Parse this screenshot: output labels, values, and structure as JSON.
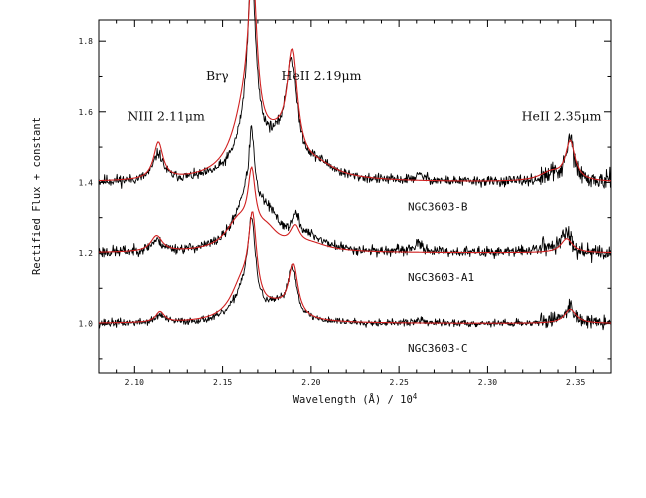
{
  "chart_data": {
    "type": "line",
    "title": "",
    "xlabel": "Wavelength (Å) / 10",
    "xlabel_sup": "4",
    "ylabel": "Rectified Flux + constant",
    "xlim": [
      2.08,
      2.37
    ],
    "ylim": [
      0.86,
      1.86
    ],
    "x_ticks": [
      2.1,
      2.15,
      2.2,
      2.25,
      2.3,
      2.35
    ],
    "x_tick_labels": [
      "2.10",
      "2.15",
      "2.20",
      "2.25",
      "2.30",
      "2.35"
    ],
    "y_ticks": [
      1.0,
      1.2,
      1.4,
      1.6,
      1.8
    ],
    "y_tick_labels": [
      "1.0",
      "1.2",
      "1.4",
      "1.6",
      "1.8"
    ],
    "annotations": [
      {
        "id": "niii",
        "text": "NIII 2.11μm",
        "x": 2.118,
        "y": 1.575
      },
      {
        "id": "brg",
        "text": "Brγ",
        "x": 2.147,
        "y": 1.69
      },
      {
        "id": "heii219",
        "text": "HeII 2.19μm",
        "x": 2.206,
        "y": 1.69
      },
      {
        "id": "heii235",
        "text": "HeII 2.35μm",
        "x": 2.342,
        "y": 1.575
      }
    ],
    "series_labels": [
      {
        "id": "ngc3603-b",
        "text": "NGC3603-B",
        "x": 2.255,
        "y": 1.32
      },
      {
        "id": "ngc3603-a1",
        "text": "NGC3603-A1",
        "x": 2.255,
        "y": 1.12
      },
      {
        "id": "ngc3603-c",
        "text": "NGC3603-C",
        "x": 2.255,
        "y": 0.92
      }
    ],
    "series": [
      {
        "name": "NGC3603-B observed",
        "color": "#000000",
        "style": "observed",
        "offset": 1.4,
        "noise": 0.009,
        "seed": 11,
        "lines": [
          [
            2.1135,
            0.075,
            0.0035
          ],
          [
            2.1665,
            0.43,
            0.0025
          ],
          [
            2.1655,
            0.15,
            0.008
          ],
          [
            2.189,
            0.26,
            0.0035
          ],
          [
            2.183,
            0.08,
            0.012
          ],
          [
            2.205,
            0.03,
            0.01
          ],
          [
            2.347,
            0.12,
            0.0025
          ],
          [
            2.338,
            0.02,
            0.006
          ],
          [
            2.262,
            0.015,
            0.004
          ]
        ],
        "x": [
          2.08,
          2.37
        ]
      },
      {
        "name": "NGC3603-B model",
        "color": "#d02020",
        "style": "model",
        "offset": 1.4,
        "lines": [
          [
            2.1135,
            0.105,
            0.0032
          ],
          [
            2.167,
            0.44,
            0.0028
          ],
          [
            2.163,
            0.17,
            0.009
          ],
          [
            2.1895,
            0.28,
            0.0033
          ],
          [
            2.182,
            0.09,
            0.012
          ],
          [
            2.205,
            0.025,
            0.012
          ],
          [
            2.347,
            0.11,
            0.0032
          ],
          [
            2.336,
            0.025,
            0.008
          ]
        ],
        "x": [
          2.08,
          2.37
        ]
      },
      {
        "name": "NGC3603-A1 observed",
        "color": "#000000",
        "style": "observed",
        "offset": 1.2,
        "noise": 0.009,
        "seed": 23,
        "lines": [
          [
            2.1125,
            0.03,
            0.004
          ],
          [
            2.1665,
            0.2,
            0.0018
          ],
          [
            2.163,
            0.12,
            0.008
          ],
          [
            2.175,
            0.09,
            0.01
          ],
          [
            2.1915,
            0.06,
            0.0025
          ],
          [
            2.2,
            0.03,
            0.01
          ],
          [
            2.261,
            0.02,
            0.004
          ],
          [
            2.345,
            0.05,
            0.003
          ],
          [
            2.335,
            0.015,
            0.01
          ]
        ],
        "x": [
          2.08,
          2.37
        ]
      },
      {
        "name": "NGC3603-A1 model",
        "color": "#d02020",
        "style": "model",
        "offset": 1.2,
        "lines": [
          [
            2.1125,
            0.045,
            0.004
          ],
          [
            2.1665,
            0.17,
            0.0025
          ],
          [
            2.159,
            0.08,
            0.009
          ],
          [
            2.175,
            0.05,
            0.008
          ],
          [
            2.191,
            0.05,
            0.003
          ],
          [
            2.2,
            0.02,
            0.012
          ],
          [
            2.345,
            0.04,
            0.004
          ]
        ],
        "x": [
          2.08,
          2.37
        ]
      },
      {
        "name": "NGC3603-C observed",
        "color": "#000000",
        "style": "observed",
        "offset": 1.0,
        "noise": 0.0065,
        "seed": 37,
        "lines": [
          [
            2.1145,
            0.022,
            0.003
          ],
          [
            2.1665,
            0.23,
            0.0026
          ],
          [
            2.162,
            0.08,
            0.007
          ],
          [
            2.1895,
            0.13,
            0.0028
          ],
          [
            2.182,
            0.04,
            0.01
          ],
          [
            2.262,
            0.008,
            0.003
          ],
          [
            2.347,
            0.045,
            0.003
          ],
          [
            2.34,
            0.01,
            0.006
          ]
        ],
        "x": [
          2.08,
          2.37
        ]
      },
      {
        "name": "NGC3603-C model",
        "color": "#d02020",
        "style": "model",
        "offset": 1.0,
        "lines": [
          [
            2.1145,
            0.03,
            0.003
          ],
          [
            2.167,
            0.24,
            0.0028
          ],
          [
            2.161,
            0.1,
            0.008
          ],
          [
            2.19,
            0.14,
            0.003
          ],
          [
            2.181,
            0.035,
            0.01
          ],
          [
            2.347,
            0.04,
            0.004
          ]
        ],
        "x": [
          2.08,
          2.37
        ]
      }
    ]
  }
}
